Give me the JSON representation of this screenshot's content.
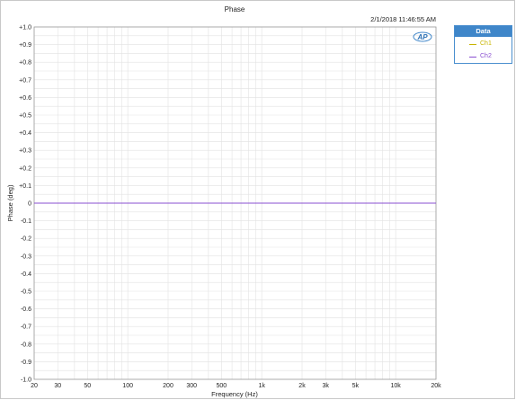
{
  "colors": {
    "ch1": "#c8b400",
    "ch2": "#8a4fd0",
    "legend_header": "#3f86c9",
    "grid": "#e2e2e2"
  },
  "timestamp": "2/1/2018 11:46:55 AM",
  "logo": {
    "text": "AP",
    "icon": "ap-logo-icon"
  },
  "legend": {
    "title": "Data",
    "items": [
      {
        "label": "Ch1",
        "color": "#c8b400"
      },
      {
        "label": "Ch2",
        "color": "#8a4fd0"
      }
    ]
  },
  "chart_data": {
    "type": "line",
    "title": "Phase",
    "xlabel": "Frequency (Hz)",
    "ylabel": "Phase (deg)",
    "xscale": "log",
    "xlim": [
      20,
      20000
    ],
    "ylim": [
      -1.0,
      1.0
    ],
    "grid": true,
    "legend_position": "outside-top-right",
    "x_ticks": [
      20,
      30,
      50,
      100,
      200,
      300,
      500,
      1000,
      2000,
      3000,
      5000,
      10000,
      20000
    ],
    "x_tick_labels": [
      "20",
      "30",
      "50",
      "100",
      "200",
      "300",
      "500",
      "1k",
      "2k",
      "3k",
      "5k",
      "10k",
      "20k"
    ],
    "y_ticks": [
      1.0,
      0.9,
      0.8,
      0.7,
      0.6,
      0.5,
      0.4,
      0.3,
      0.2,
      0.1,
      0,
      -0.1,
      -0.2,
      -0.3,
      -0.4,
      -0.5,
      -0.6,
      -0.7,
      -0.8,
      -0.9,
      -1.0
    ],
    "y_tick_labels": [
      "+1.0",
      "+0.9",
      "+0.8",
      "+0.7",
      "+0.6",
      "+0.5",
      "+0.4",
      "+0.3",
      "+0.2",
      "+0.1",
      "0",
      "-0.1",
      "-0.2",
      "-0.3",
      "-0.4",
      "-0.5",
      "-0.6",
      "-0.7",
      "-0.8",
      "-0.9",
      "-1.0"
    ],
    "series": [
      {
        "name": "Ch1",
        "color": "#c8b400",
        "x": [
          20,
          20000
        ],
        "y": [
          0,
          0
        ]
      },
      {
        "name": "Ch2",
        "color": "#8a4fd0",
        "x": [
          20,
          20000
        ],
        "y": [
          0,
          0
        ]
      }
    ]
  }
}
